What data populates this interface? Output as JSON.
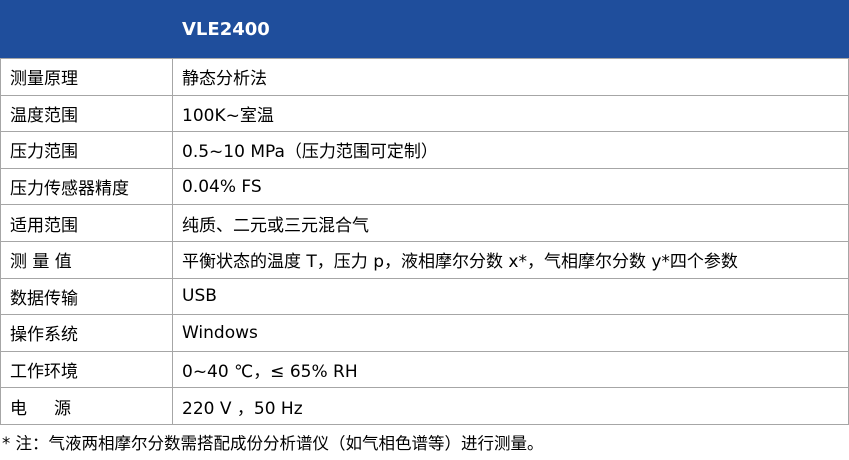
{
  "header": {
    "title": "VLE2400"
  },
  "table": {
    "rows": [
      [
        "测量原理",
        "静态分析法"
      ],
      [
        "温度范围",
        "100K~室温"
      ],
      [
        "压力范围",
        "0.5~10 MPa（压力范围可定制）"
      ],
      [
        "压力传感器精度",
        "0.04% FS"
      ],
      [
        "适用范围",
        "纯质、二元或三元混合气"
      ],
      [
        "测 量 值",
        "平衡状态的温度 T，压力 p，液相摩尔分数 x*，气相摩尔分数 y*四个参数"
      ],
      [
        "数据传输",
        "USB"
      ],
      [
        "操作系统",
        "Windows"
      ],
      [
        "工作环境",
        "0~40 ℃，≤ 65% RH"
      ],
      [
        "电     源",
        "220 V ，50 Hz"
      ]
    ]
  },
  "footnote": "* 注：气液两相摩尔分数需搭配成份分析谱仪（如气相色谱等）进行测量。"
}
